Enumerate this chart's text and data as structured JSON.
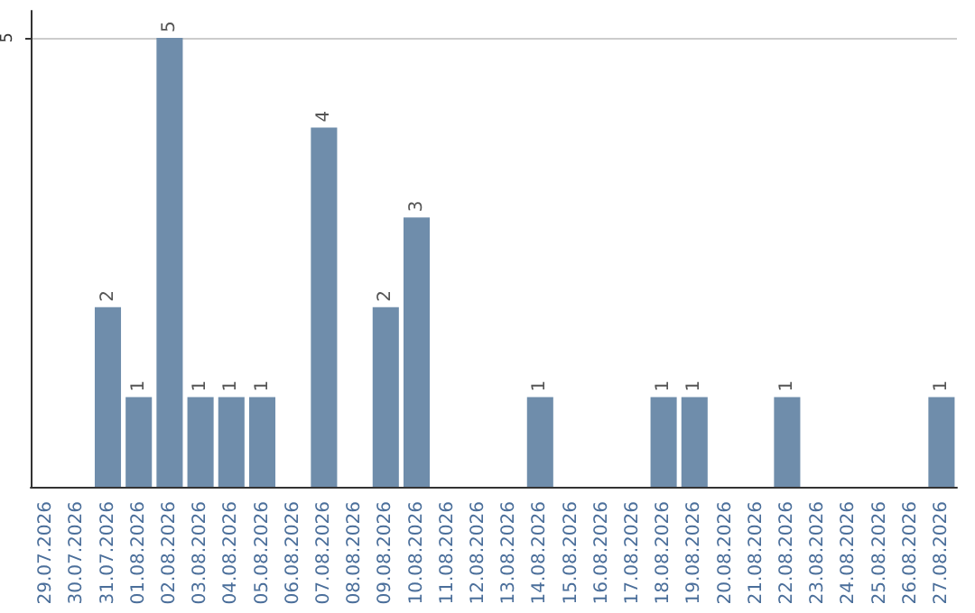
{
  "chart_data": {
    "type": "bar",
    "categories": [
      "29.07.2026",
      "30.07.2026",
      "31.07.2026",
      "01.08.2026",
      "02.08.2026",
      "03.08.2026",
      "04.08.2026",
      "05.08.2026",
      "06.08.2026",
      "07.08.2026",
      "08.08.2026",
      "09.08.2026",
      "10.08.2026",
      "11.08.2026",
      "12.08.2026",
      "13.08.2026",
      "14.08.2026",
      "15.08.2026",
      "16.08.2026",
      "17.08.2026",
      "18.08.2026",
      "19.08.2026",
      "20.08.2026",
      "21.08.2026",
      "22.08.2026",
      "23.08.2026",
      "24.08.2026",
      "25.08.2026",
      "26.08.2026",
      "27.08.2026"
    ],
    "values": [
      0,
      0,
      2,
      1,
      5,
      1,
      1,
      1,
      0,
      4,
      0,
      2,
      3,
      0,
      0,
      0,
      1,
      0,
      0,
      0,
      1,
      1,
      0,
      0,
      1,
      0,
      0,
      0,
      0,
      1
    ],
    "value_labels": [
      null,
      null,
      "2",
      "1",
      "5",
      "1",
      "1",
      "1",
      null,
      "4",
      null,
      "2",
      "3",
      null,
      null,
      null,
      "1",
      null,
      null,
      null,
      "1",
      "1",
      null,
      null,
      "1",
      null,
      null,
      null,
      null,
      "1"
    ],
    "color": "#6f8dab",
    "ylim": [
      0,
      5.3
    ],
    "yticks": [
      5
    ],
    "grid": "y"
  }
}
